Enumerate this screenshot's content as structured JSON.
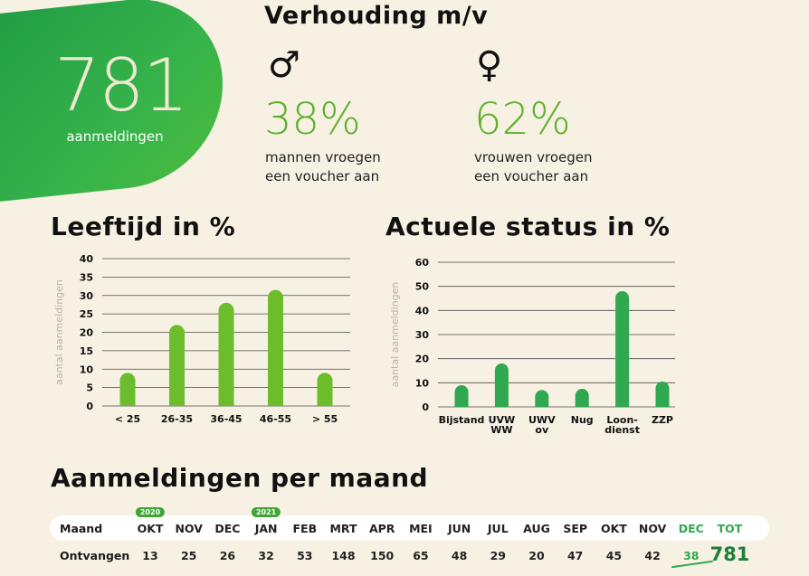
{
  "hero": {
    "value": "781",
    "label": "aanmeldingen"
  },
  "ratio": {
    "title": "Verhouding m/v",
    "male": {
      "symbol": "♂",
      "percent": "38%",
      "line1": "mannen vroegen",
      "line2": "een voucher aan"
    },
    "female": {
      "symbol": "♀",
      "percent": "62%",
      "line1": "vrouwen vroegen",
      "line2": "een voucher aan"
    }
  },
  "colors": {
    "light_green": "#6cbd2b",
    "dark_green": "#1f9a45",
    "accent_green": "#2fa84f"
  },
  "chart_data": [
    {
      "type": "bar",
      "title": "Leeftijd in %",
      "ylabel": "aantal aanmeldingen",
      "categories": [
        "< 25",
        "26-35",
        "36-45",
        "46-55",
        "> 55"
      ],
      "values": [
        9,
        22,
        28,
        31.5,
        9
      ],
      "ylim": [
        0,
        40
      ],
      "yticks": [
        0,
        5,
        10,
        15,
        20,
        25,
        30,
        35,
        40
      ],
      "grid": true
    },
    {
      "type": "bar",
      "title": "Actuele status in %",
      "ylabel": "aantal aanmeldingen",
      "categories": [
        [
          "Bijstand"
        ],
        [
          "UVW",
          "WW"
        ],
        [
          "UWV",
          "ov"
        ],
        [
          "Nug"
        ],
        [
          "Loon-",
          "dienst"
        ],
        [
          "ZZP"
        ]
      ],
      "values": [
        9,
        18,
        7,
        7.5,
        48,
        10.5
      ],
      "ylim": [
        0,
        60
      ],
      "yticks": [
        0,
        10,
        20,
        30,
        40,
        50,
        60
      ],
      "grid": true
    }
  ],
  "monthly": {
    "title": "Aanmeldingen per maand",
    "row_month_label": "Maand",
    "row_count_label": "Ontvangen",
    "year_badges": [
      {
        "label": "2020",
        "col": 0
      },
      {
        "label": "2021",
        "col": 3
      }
    ],
    "months": [
      "OKT",
      "NOV",
      "DEC",
      "JAN",
      "FEB",
      "MRT",
      "APR",
      "MEI",
      "JUN",
      "JUL",
      "AUG",
      "SEP",
      "OKT",
      "NOV",
      "DEC"
    ],
    "counts": [
      "13",
      "25",
      "26",
      "32",
      "53",
      "148",
      "150",
      "65",
      "48",
      "29",
      "20",
      "47",
      "45",
      "42",
      "38"
    ],
    "total_label": "TOT",
    "total_value": "781"
  }
}
